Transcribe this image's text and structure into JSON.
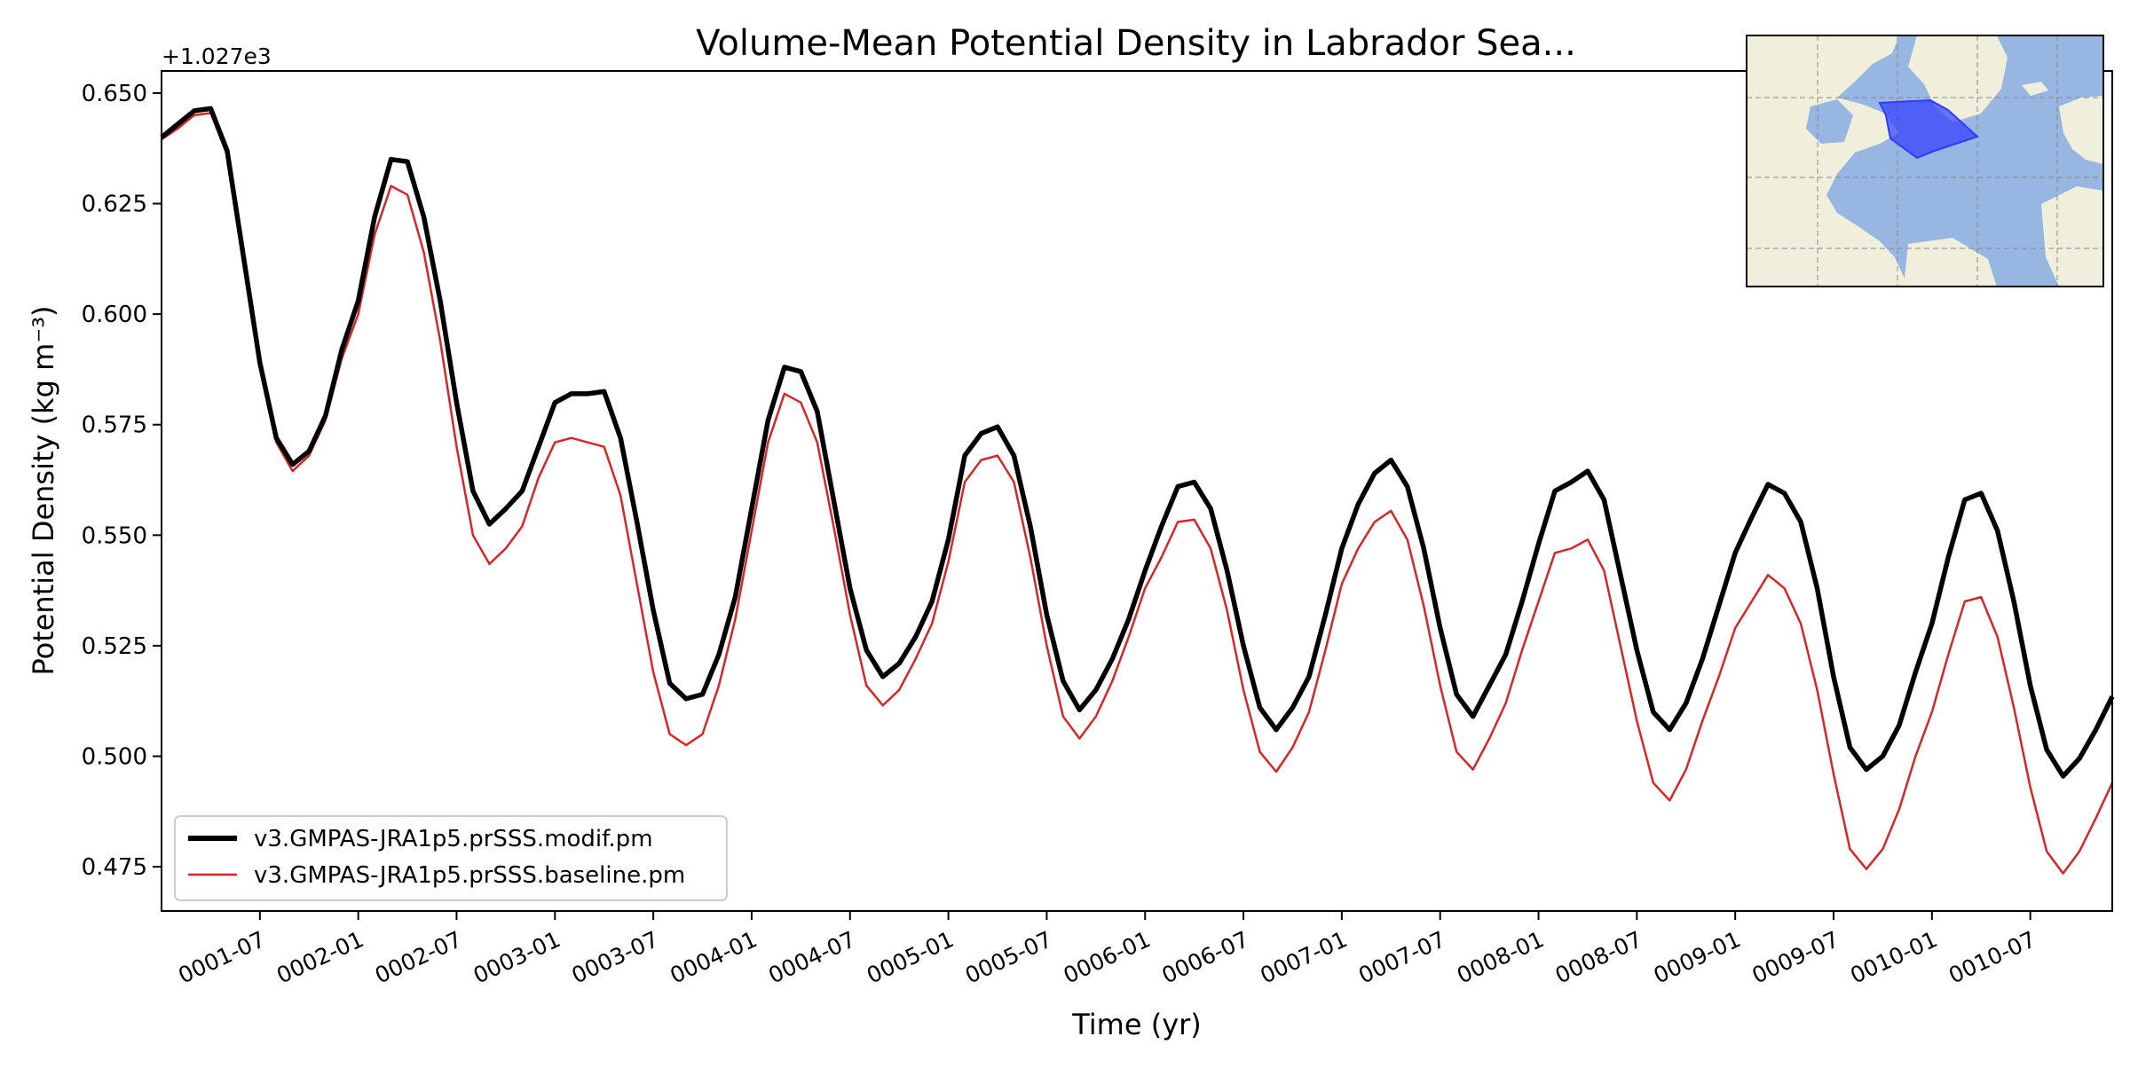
{
  "colors": {
    "modif": "#000000",
    "baseline": "#d62728",
    "ocean": "#97b6e1",
    "land": "#efefdb",
    "region": "#2f3cff"
  },
  "chart_data": {
    "type": "line",
    "title": "Volume-Mean Potential Density in Labrador Sea...",
    "xlabel": "Time (yr)",
    "ylabel": "Potential Density (kg m⁻³)",
    "offset_label": "+1.027e3",
    "ylim": [
      0.465,
      0.655
    ],
    "yticks": [
      0.475,
      0.5,
      0.525,
      0.55,
      0.575,
      0.6,
      0.625,
      0.65
    ],
    "ytick_labels": [
      "0.475",
      "0.500",
      "0.525",
      "0.550",
      "0.575",
      "0.600",
      "0.625",
      "0.650"
    ],
    "xlim_months": [
      0,
      119
    ],
    "xticks_months": [
      6,
      12,
      18,
      24,
      30,
      36,
      42,
      48,
      54,
      60,
      66,
      72,
      78,
      84,
      90,
      96,
      102,
      108,
      114
    ],
    "xtick_labels": [
      "0001-07",
      "0002-01",
      "0002-07",
      "0003-01",
      "0003-07",
      "0004-01",
      "0004-07",
      "0005-01",
      "0005-07",
      "0006-01",
      "0006-07",
      "0007-01",
      "0007-07",
      "0008-01",
      "0008-07",
      "0009-01",
      "0009-07",
      "0010-01",
      "0010-07"
    ],
    "x_months": [
      0,
      1,
      2,
      3,
      4,
      5,
      6,
      7,
      8,
      9,
      10,
      11,
      12,
      13,
      14,
      15,
      16,
      17,
      18,
      19,
      20,
      21,
      22,
      23,
      24,
      25,
      26,
      27,
      28,
      29,
      30,
      31,
      32,
      33,
      34,
      35,
      36,
      37,
      38,
      39,
      40,
      41,
      42,
      43,
      44,
      45,
      46,
      47,
      48,
      49,
      50,
      51,
      52,
      53,
      54,
      55,
      56,
      57,
      58,
      59,
      60,
      61,
      62,
      63,
      64,
      65,
      66,
      67,
      68,
      69,
      70,
      71,
      72,
      73,
      74,
      75,
      76,
      77,
      78,
      79,
      80,
      81,
      82,
      83,
      84,
      85,
      86,
      87,
      88,
      89,
      90,
      91,
      92,
      93,
      94,
      95,
      96,
      97,
      98,
      99,
      100,
      101,
      102,
      103,
      104,
      105,
      106,
      107,
      108,
      109,
      110,
      111,
      112,
      113,
      114,
      115,
      116,
      117,
      118,
      119
    ],
    "series": [
      {
        "name": "v3.GMPAS-JRA1p5.prSSS.modif.pm",
        "values": [
          0.64,
          0.643,
          0.646,
          0.6465,
          0.637,
          0.613,
          0.589,
          0.572,
          0.566,
          0.569,
          0.577,
          0.592,
          0.603,
          0.622,
          0.635,
          0.6345,
          0.622,
          0.603,
          0.58,
          0.56,
          0.5525,
          0.556,
          0.56,
          0.57,
          0.58,
          0.582,
          0.582,
          0.5825,
          0.572,
          0.553,
          0.533,
          0.5165,
          0.513,
          0.514,
          0.523,
          0.536,
          0.556,
          0.576,
          0.588,
          0.587,
          0.578,
          0.558,
          0.538,
          0.524,
          0.518,
          0.521,
          0.527,
          0.535,
          0.549,
          0.568,
          0.573,
          0.5745,
          0.568,
          0.552,
          0.532,
          0.517,
          0.5105,
          0.515,
          0.522,
          0.531,
          0.542,
          0.552,
          0.561,
          0.562,
          0.556,
          0.542,
          0.525,
          0.511,
          0.506,
          0.511,
          0.518,
          0.532,
          0.547,
          0.557,
          0.564,
          0.567,
          0.561,
          0.547,
          0.529,
          0.514,
          0.509,
          0.516,
          0.523,
          0.535,
          0.548,
          0.56,
          0.562,
          0.5645,
          0.558,
          0.541,
          0.524,
          0.51,
          0.506,
          0.512,
          0.522,
          0.534,
          0.546,
          0.554,
          0.5615,
          0.5595,
          0.553,
          0.538,
          0.518,
          0.502,
          0.497,
          0.5,
          0.507,
          0.519,
          0.53,
          0.545,
          0.558,
          0.5595,
          0.551,
          0.535,
          0.516,
          0.5015,
          0.4955,
          0.4995,
          0.506,
          0.5135
        ]
      },
      {
        "name": "v3.GMPAS-JRA1p5.prSSS.baseline.pm",
        "values": [
          0.6395,
          0.642,
          0.645,
          0.6455,
          0.636,
          0.612,
          0.588,
          0.571,
          0.5645,
          0.568,
          0.576,
          0.59,
          0.6,
          0.618,
          0.629,
          0.627,
          0.614,
          0.594,
          0.57,
          0.55,
          0.5435,
          0.547,
          0.552,
          0.563,
          0.571,
          0.572,
          0.571,
          0.57,
          0.559,
          0.539,
          0.519,
          0.505,
          0.5025,
          0.505,
          0.516,
          0.531,
          0.551,
          0.571,
          0.582,
          0.58,
          0.571,
          0.552,
          0.532,
          0.516,
          0.5115,
          0.515,
          0.522,
          0.53,
          0.544,
          0.562,
          0.567,
          0.568,
          0.562,
          0.545,
          0.525,
          0.509,
          0.504,
          0.509,
          0.517,
          0.527,
          0.538,
          0.545,
          0.553,
          0.5535,
          0.547,
          0.533,
          0.515,
          0.501,
          0.4965,
          0.502,
          0.51,
          0.524,
          0.539,
          0.547,
          0.553,
          0.5555,
          0.549,
          0.534,
          0.516,
          0.501,
          0.497,
          0.504,
          0.512,
          0.524,
          0.535,
          0.546,
          0.547,
          0.549,
          0.542,
          0.525,
          0.508,
          0.494,
          0.49,
          0.497,
          0.508,
          0.518,
          0.529,
          0.535,
          0.541,
          0.538,
          0.53,
          0.515,
          0.496,
          0.479,
          0.4745,
          0.479,
          0.488,
          0.5,
          0.51,
          0.523,
          0.535,
          0.536,
          0.527,
          0.511,
          0.493,
          0.4785,
          0.4735,
          0.4785,
          0.486,
          0.494
        ]
      }
    ],
    "legend_location": "lower-left",
    "grid": false,
    "inset": {
      "description": "map of North Atlantic with Labrador Sea region highlighted",
      "location": "top-right"
    }
  }
}
